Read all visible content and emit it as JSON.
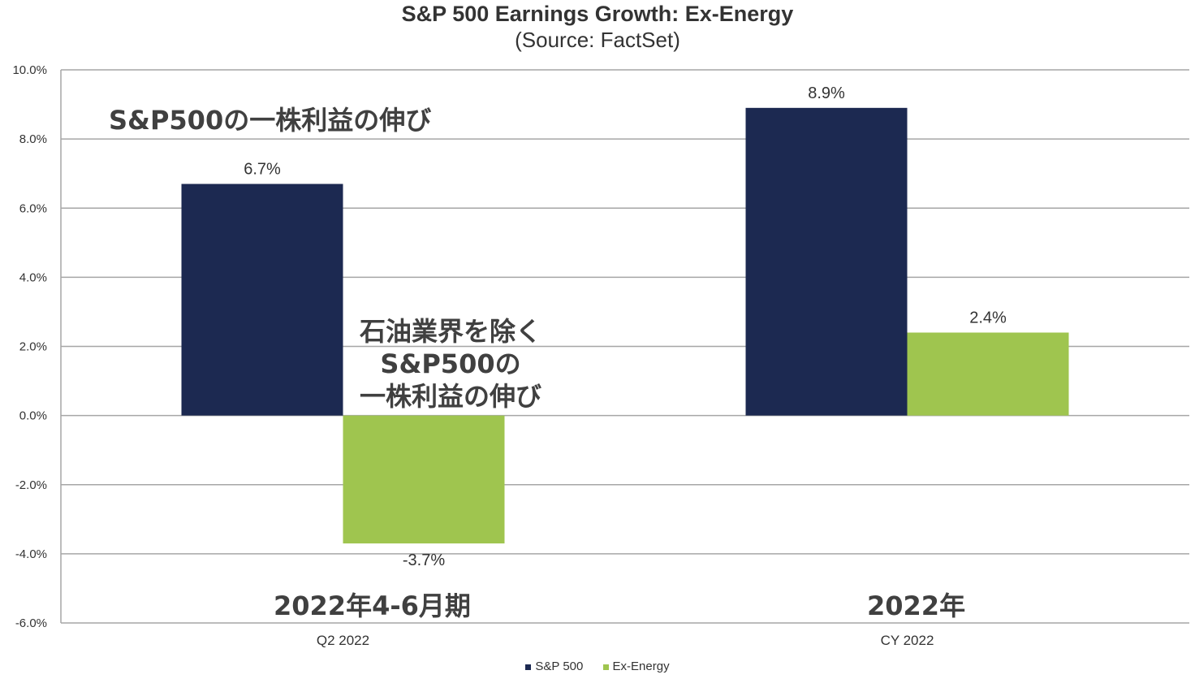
{
  "title": "S&P 500 Earnings Growth: Ex-Energy",
  "subtitle": "(Source: FactSet)",
  "annotations": {
    "sp500": "S&P500の一株利益の伸び",
    "ex_energy_lines": [
      "石油業界を除く",
      "S&P500の",
      "一株利益の伸び"
    ],
    "q2_jp": "2022年4-6月期",
    "cy_jp": "2022年"
  },
  "colors": {
    "sp500": "#1c2951",
    "ex_energy": "#9fc54f",
    "grid": "#a6a6a6"
  },
  "chart_data": {
    "type": "bar",
    "title": "S&P 500 Earnings Growth: Ex-Energy",
    "subtitle": "(Source: FactSet)",
    "categories": [
      "Q2 2022",
      "CY 2022"
    ],
    "series": [
      {
        "name": "S&P 500",
        "values": [
          6.7,
          8.9
        ],
        "labels": [
          "6.7%",
          "8.9%"
        ]
      },
      {
        "name": "Ex-Energy",
        "values": [
          -3.7,
          2.4
        ],
        "labels": [
          "-3.7%",
          "2.4%"
        ]
      }
    ],
    "ylim": [
      -6,
      10
    ],
    "yticks": [
      "10.0%",
      "8.0%",
      "6.0%",
      "4.0%",
      "2.0%",
      "0.0%",
      "-2.0%",
      "-4.0%",
      "-6.0%"
    ],
    "grid": true,
    "legend": "bottom"
  }
}
